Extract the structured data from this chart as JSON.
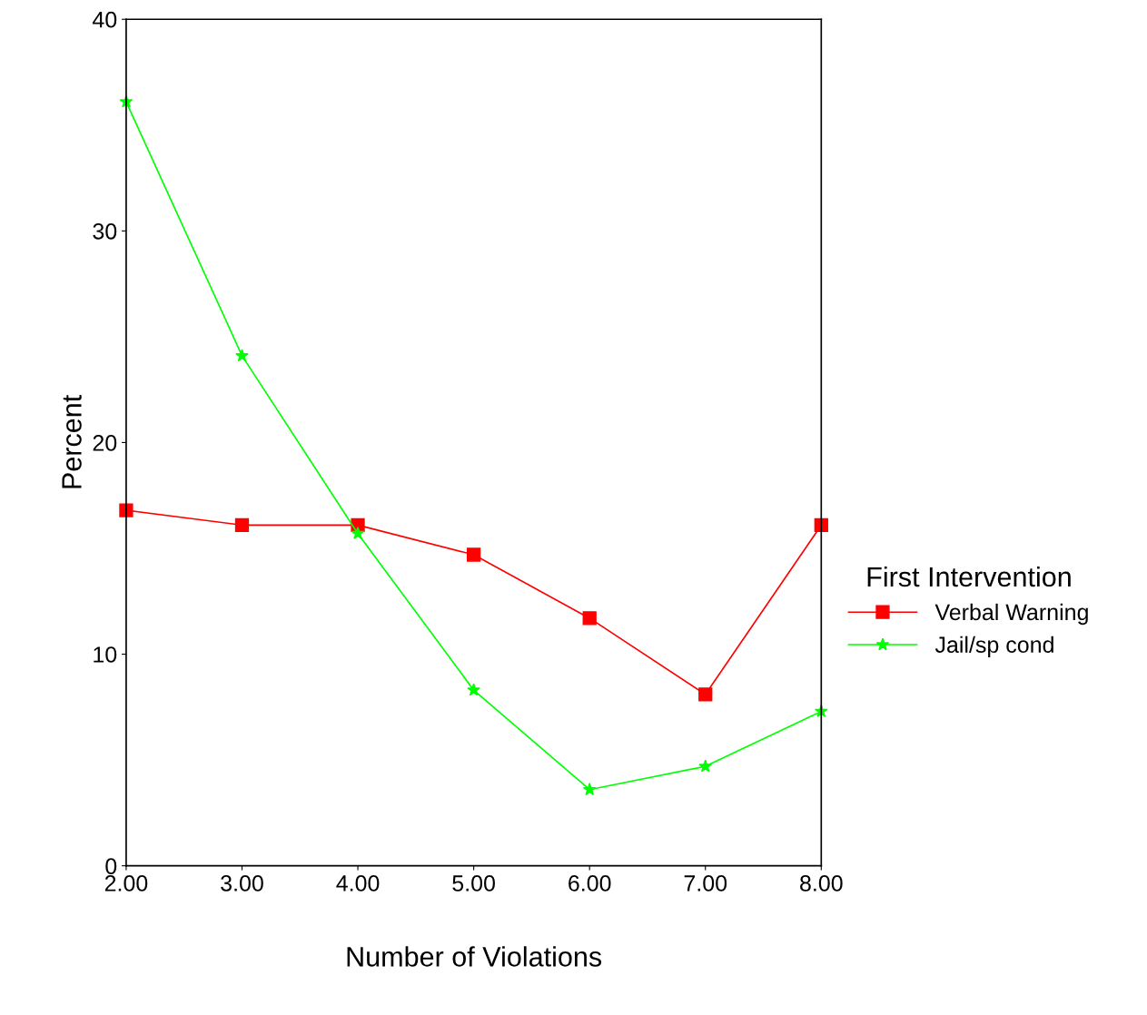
{
  "chart_data": {
    "type": "line",
    "xlabel": "Number of Violations",
    "ylabel": "Percent",
    "legend_title": "First Intervention",
    "x": [
      2,
      3,
      4,
      5,
      6,
      7,
      8
    ],
    "series": [
      {
        "name": "Verbal Warning",
        "color": "#ff0000",
        "marker": "square",
        "values": [
          16.8,
          16.1,
          16.1,
          14.7,
          11.7,
          8.1,
          16.1
        ]
      },
      {
        "name": "Jail/sp cond",
        "color": "#00ff00",
        "marker": "star",
        "values": [
          36.1,
          24.1,
          15.7,
          8.3,
          3.6,
          4.7,
          7.3
        ]
      }
    ],
    "xlim": [
      2,
      8
    ],
    "xticks": [
      {
        "value": 2,
        "label": "2.00"
      },
      {
        "value": 3,
        "label": "3.00"
      },
      {
        "value": 4,
        "label": "4.00"
      },
      {
        "value": 5,
        "label": "5.00"
      },
      {
        "value": 6,
        "label": "6.00"
      },
      {
        "value": 7,
        "label": "7.00"
      },
      {
        "value": 8,
        "label": "8.00"
      }
    ],
    "ylim": [
      0,
      40
    ],
    "yticks": [
      0,
      10,
      20,
      30,
      40
    ],
    "grid": false,
    "legend": "right",
    "line_style": "solid"
  }
}
